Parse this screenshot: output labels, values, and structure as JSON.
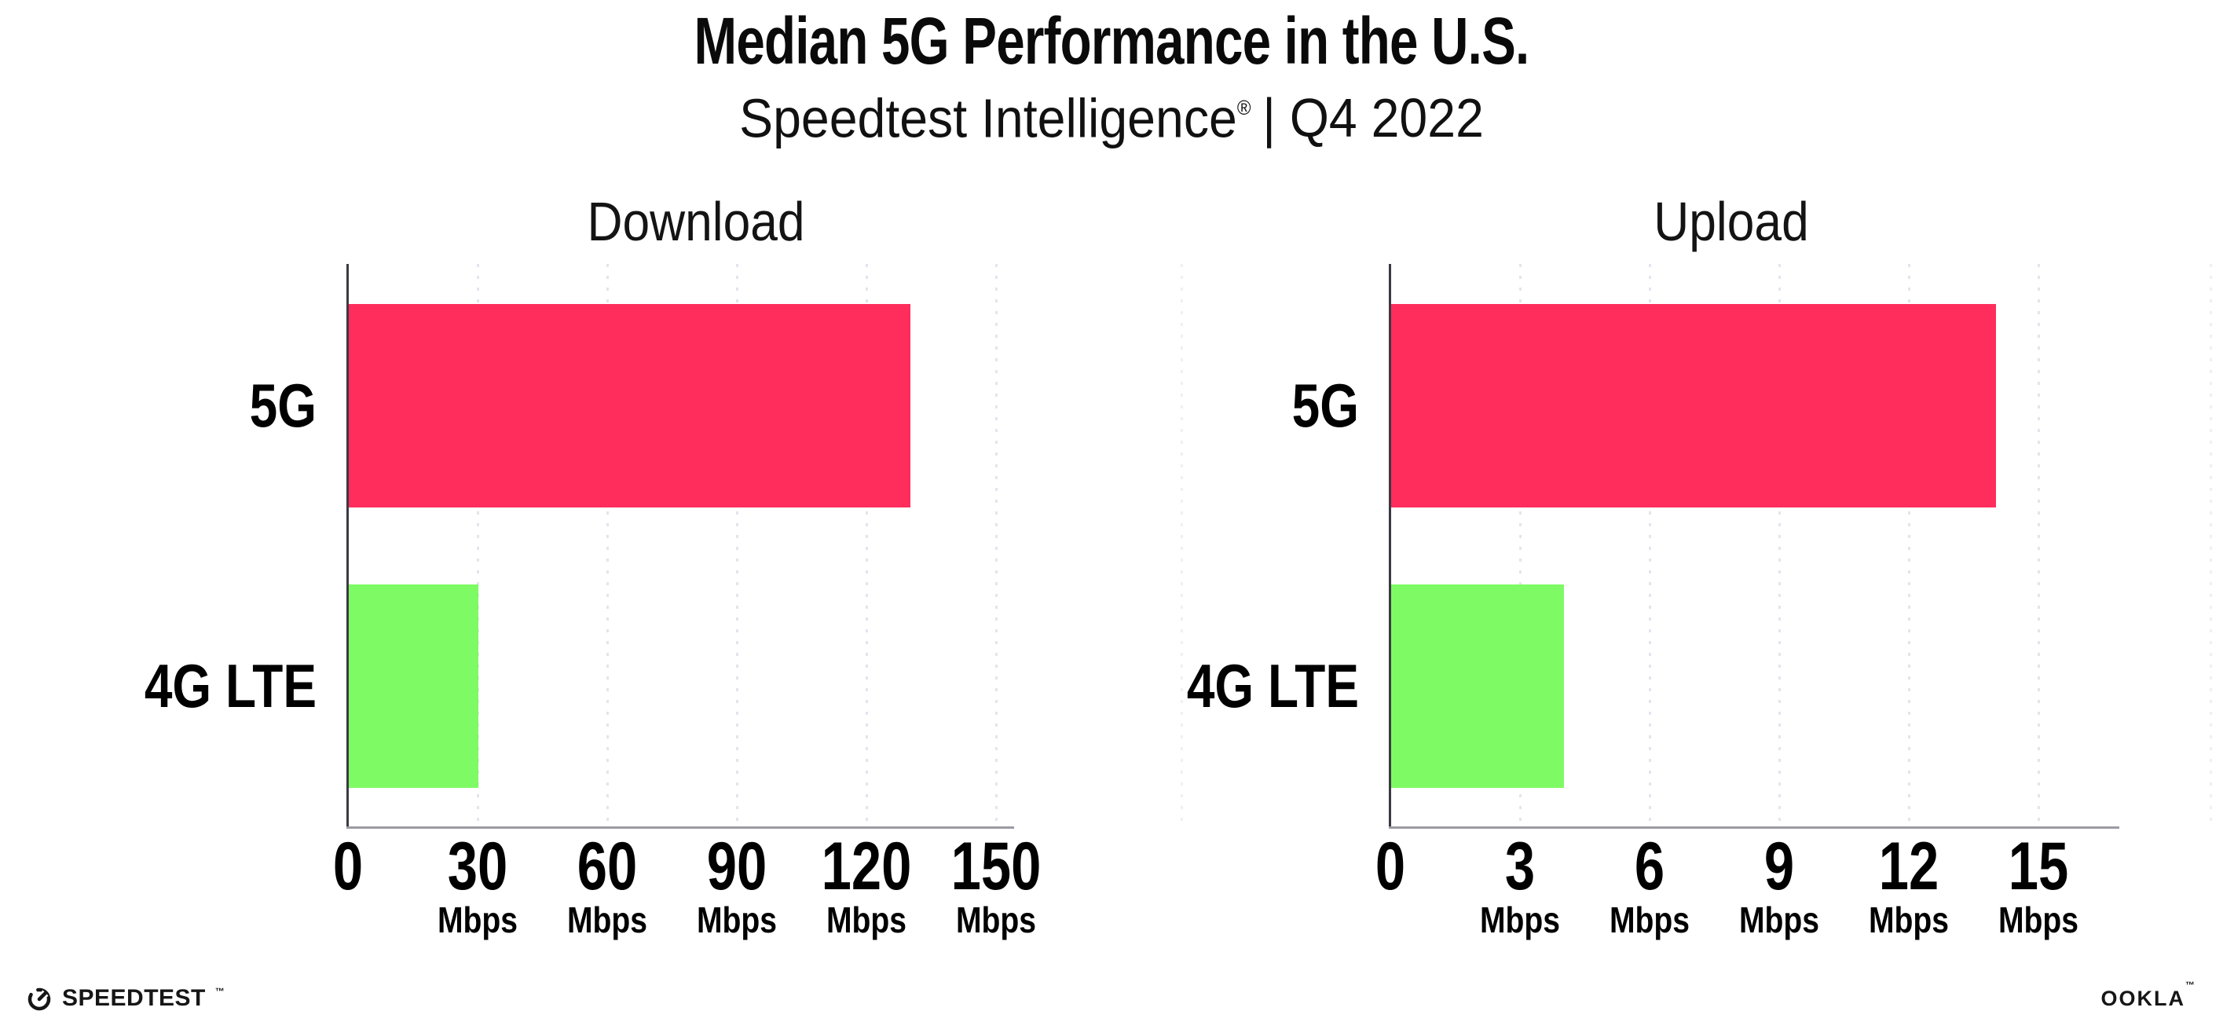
{
  "header": {
    "title": "Median 5G Performance in the U.S.",
    "subtitle_brand": "Speedtest Intelligence",
    "subtitle_reg": "®",
    "subtitle_rest": "| Q4 2022"
  },
  "chart_data": [
    {
      "type": "bar",
      "orientation": "horizontal",
      "title": "Download",
      "categories": [
        "5G",
        "4G LTE"
      ],
      "values": [
        130,
        30
      ],
      "unit": "Mbps",
      "xlim": [
        0,
        150
      ],
      "ticks": [
        0,
        30,
        60,
        90,
        120,
        150
      ],
      "bar_colors": [
        "#FF2D5C",
        "#7EFB64"
      ],
      "grid": "dotted-vertical",
      "legend": "none"
    },
    {
      "type": "bar",
      "orientation": "horizontal",
      "title": "Upload",
      "categories": [
        "5G",
        "4G LTE"
      ],
      "values": [
        14,
        4
      ],
      "unit": "Mbps",
      "xlim": [
        0,
        15
      ],
      "ticks": [
        0,
        3,
        6,
        9,
        12,
        15
      ],
      "bar_colors": [
        "#FF2D5C",
        "#7EFB64"
      ],
      "grid": "dotted-vertical",
      "legend": "none"
    }
  ],
  "footer": {
    "speedtest_label": "SPEEDTEST",
    "speedtest_mark": "™",
    "ookla_label": "OOKLA",
    "ookla_mark": "™"
  },
  "colors": {
    "bar_5g": "#FF2D5C",
    "bar_4g_lte": "#7EFB64",
    "axis_line": "#3a3a43",
    "baseline": "#9b9ba3",
    "gridline": "#e4e4ee",
    "text": "#0a0a0a",
    "background": "#ffffff"
  }
}
